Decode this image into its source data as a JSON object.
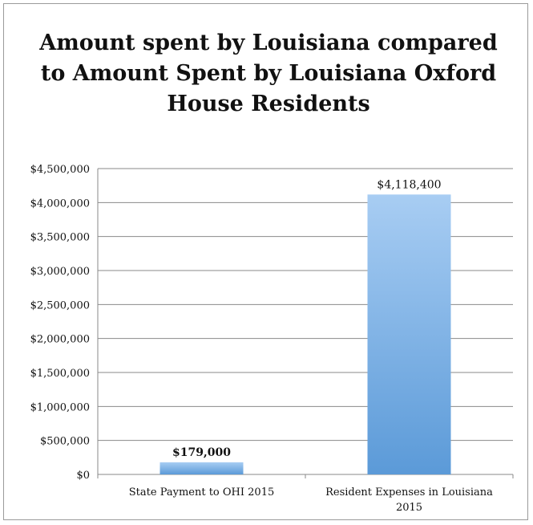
{
  "chart_data": {
    "type": "bar",
    "title": "Amount spent by Louisiana compared to Amount Spent by Louisiana Oxford House Residents",
    "categories": [
      "State Payment to OHI 2015",
      "Resident Expenses in Louisiana 2015"
    ],
    "values": [
      179000,
      4118400
    ],
    "data_labels": [
      "$179,000",
      "$4,118,400"
    ],
    "y_ticks": [
      0,
      500000,
      1000000,
      1500000,
      2000000,
      2500000,
      3000000,
      3500000,
      4000000,
      4500000
    ],
    "y_tick_labels": [
      "$0",
      "$500,000",
      "$1,000,000",
      "$1,500,000",
      "$2,000,000",
      "$2,500,000",
      "$3,000,000",
      "$3,500,000",
      "$4,000,000",
      "$4,500,000"
    ],
    "ylim": [
      0,
      4500000
    ],
    "xlabel": "",
    "ylabel": "",
    "grid": true,
    "legend": "none",
    "colors": {
      "bar_light": "#a8cdf3",
      "bar_dark": "#5b9ad8",
      "grid": "#8a8a8a",
      "text": "#111111"
    }
  }
}
